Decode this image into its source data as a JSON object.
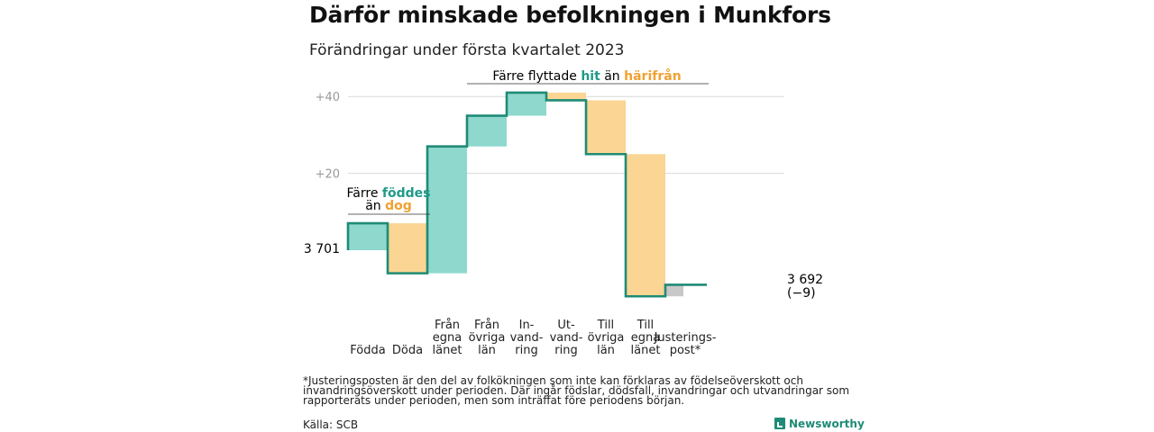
{
  "title": "Därför minskade befolkningen i Munkfors",
  "subtitle": "Förändringar under första kvartalet 2023",
  "colors": {
    "increase": "#8ed8cd",
    "decrease": "#fad593",
    "adjustment": "#c8c8c8",
    "line": "#1f8b76",
    "grid": "#d9d9d9",
    "teal_text": "#1f9a8a",
    "orange_text": "#f0a132"
  },
  "annotations": {
    "births": {
      "line1_pre": "Färre ",
      "line1_hl": "föddes",
      "line2_pre": "än ",
      "line2_hl": "dog"
    },
    "migration": {
      "pre": "Färre flyttade ",
      "hl1": "hit",
      "mid": " än ",
      "hl2": "härifrån"
    }
  },
  "start_label": "3 701",
  "end_label": "3 692",
  "end_change": "(−9)",
  "footnote": "*Justeringsposten är den del av folkökningen som inte kan förklaras av födelseöverskott och invandringsöverskott under perioden. Där ingår födslar, dödsfall, invandringar och utvandringar som rapporterats under perioden, men som inträffat före periodens början.",
  "source": "Källa: SCB",
  "brand": "Newsworthy",
  "chart_data": {
    "type": "waterfall",
    "start": 3701,
    "end": 3692,
    "y_baseline": 3701,
    "yticks": [
      {
        "value": 20,
        "label": "+20"
      },
      {
        "value": 40,
        "label": "+40"
      }
    ],
    "steps": [
      {
        "category": [
          "Födda"
        ],
        "change": 7,
        "kind": "increase"
      },
      {
        "category": [
          "Döda"
        ],
        "change": -13,
        "kind": "decrease"
      },
      {
        "category": [
          "Från",
          "egna",
          "länet"
        ],
        "change": 33,
        "kind": "increase"
      },
      {
        "category": [
          "Från",
          "övriga",
          "län"
        ],
        "change": 8,
        "kind": "increase"
      },
      {
        "category": [
          "In-",
          "vand-",
          "ring"
        ],
        "change": 6,
        "kind": "increase"
      },
      {
        "category": [
          "Ut-",
          "vand-",
          "ring"
        ],
        "change": -2,
        "kind": "decrease"
      },
      {
        "category": [
          "Till",
          "övriga",
          "län"
        ],
        "change": -14,
        "kind": "decrease"
      },
      {
        "category": [
          "Till",
          "egna",
          "länet"
        ],
        "change": -37,
        "kind": "decrease"
      },
      {
        "category": [
          "Justerings-",
          "post*"
        ],
        "change": 3,
        "kind": "adjustment"
      }
    ],
    "grid": true,
    "legend": "none"
  }
}
